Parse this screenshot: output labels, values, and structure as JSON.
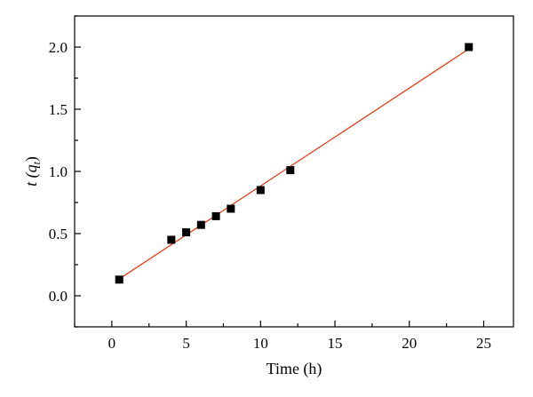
{
  "chart_data": {
    "type": "scatter",
    "xlabel": "Time (h)",
    "ylabel": {
      "main": "t (q",
      "sub": "t",
      "close": ")"
    },
    "xlim": [
      -2.5,
      27
    ],
    "ylim": [
      -0.25,
      2.25
    ],
    "xticks": [
      0,
      5,
      10,
      15,
      20,
      25
    ],
    "xtick_labels": [
      "0",
      "5",
      "10",
      "15",
      "20",
      "25"
    ],
    "yticks": [
      0.0,
      0.5,
      1.0,
      1.5,
      2.0
    ],
    "ytick_labels": [
      "0.0",
      "0.5",
      "1.0",
      "1.5",
      "2.0"
    ],
    "grid": false,
    "series": [
      {
        "marker": "square",
        "color": "#000000",
        "x": [
          0.5,
          4,
          5,
          6,
          7,
          8,
          10,
          12,
          24
        ],
        "y": [
          0.13,
          0.45,
          0.51,
          0.57,
          0.64,
          0.7,
          0.85,
          1.01,
          2.0
        ]
      }
    ],
    "fit_line": {
      "color": "#e0401a",
      "x": [
        0.5,
        24
      ],
      "y": [
        0.135,
        1.985
      ]
    }
  }
}
